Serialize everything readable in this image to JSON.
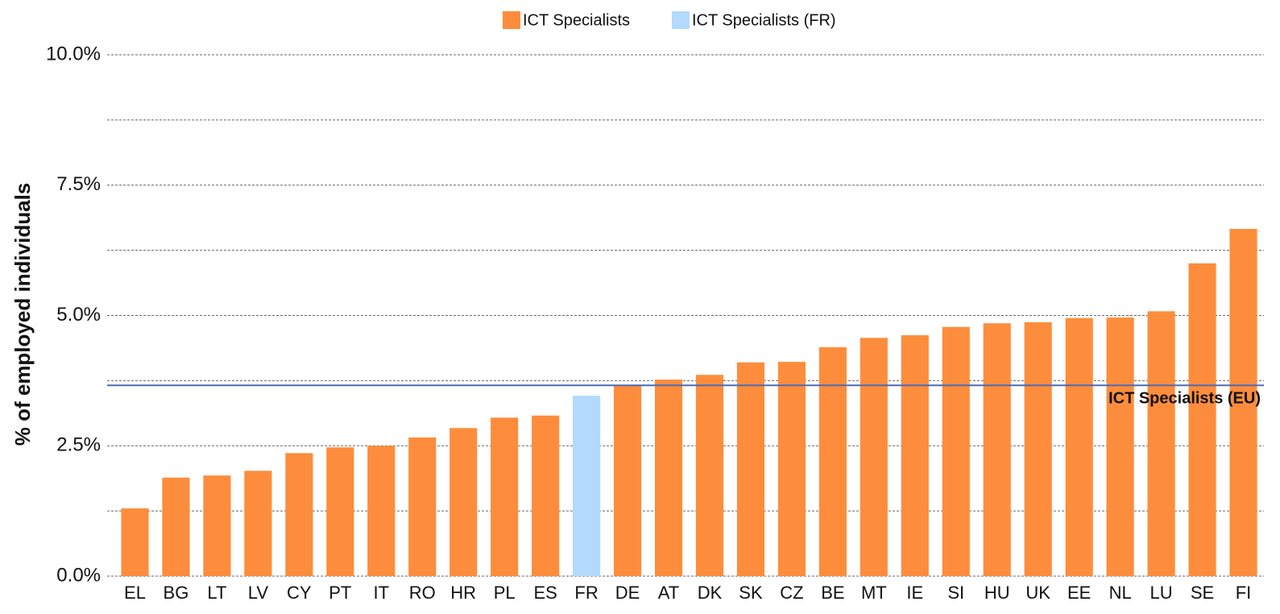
{
  "chart_data": {
    "type": "bar",
    "ylabel": "% of employed individuals",
    "categories": [
      "EL",
      "BG",
      "LT",
      "LV",
      "CY",
      "PT",
      "IT",
      "RO",
      "HR",
      "PL",
      "ES",
      "FR",
      "DE",
      "AT",
      "DK",
      "SK",
      "CZ",
      "BE",
      "MT",
      "IE",
      "SI",
      "HU",
      "UK",
      "EE",
      "NL",
      "LU",
      "SE",
      "FI"
    ],
    "series": [
      {
        "name": "ICT Specialists",
        "color": "#fd8d3c",
        "values": [
          1.3,
          1.89,
          1.93,
          2.02,
          2.36,
          2.47,
          2.5,
          2.66,
          2.84,
          3.04,
          3.08,
          null,
          3.66,
          3.77,
          3.86,
          4.1,
          4.11,
          4.39,
          4.57,
          4.62,
          4.78,
          4.85,
          4.87,
          4.95,
          4.96,
          5.08,
          6.0,
          6.66
        ]
      },
      {
        "name": "ICT Specialists (FR)",
        "color": "#b3d9fc",
        "values": [
          null,
          null,
          null,
          null,
          null,
          null,
          null,
          null,
          null,
          null,
          null,
          3.46,
          null,
          null,
          null,
          null,
          null,
          null,
          null,
          null,
          null,
          null,
          null,
          null,
          null,
          null,
          null,
          null
        ]
      }
    ],
    "reference_line": {
      "label": "ICT Specialists (EU)",
      "value": 3.66,
      "color": "#4a6bb5"
    },
    "ylim": [
      0,
      10
    ],
    "yticks": [
      {
        "value": 0,
        "label": "0.0%"
      },
      {
        "value": 2.5,
        "label": "2.5%"
      },
      {
        "value": 5,
        "label": "5.0%"
      },
      {
        "value": 7.5,
        "label": "7.5%"
      },
      {
        "value": 10,
        "label": "10.0%"
      }
    ],
    "minor_yticks": [
      1.25,
      3.75,
      6.25,
      8.75
    ],
    "grid": true,
    "legend": "top"
  }
}
